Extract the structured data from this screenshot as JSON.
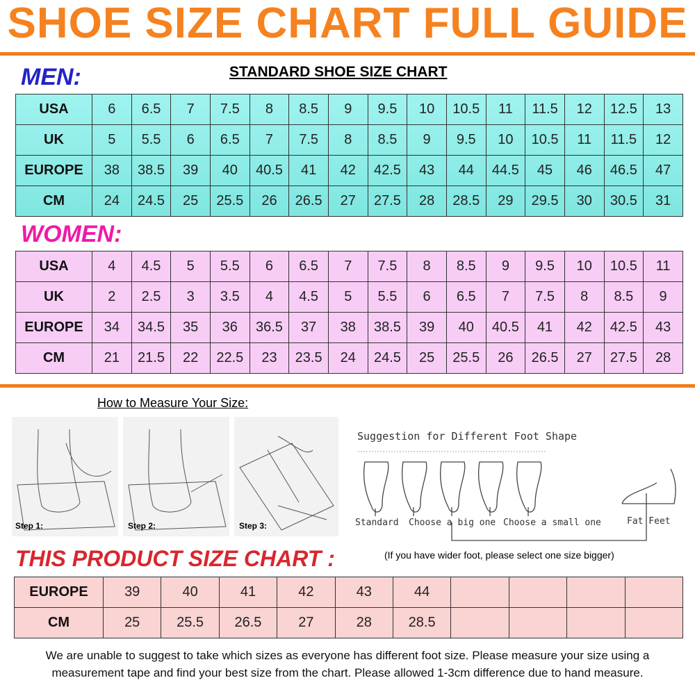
{
  "header": {
    "title": "SHOE SIZE CHART FULL GUIDE"
  },
  "men": {
    "heading": "MEN:",
    "subtitle": "STANDARD SHOE SIZE CHART",
    "rows": [
      {
        "label": "USA",
        "values": [
          6,
          6.5,
          7,
          7.5,
          8,
          8.5,
          9,
          9.5,
          10,
          10.5,
          11,
          11.5,
          12,
          12.5,
          13
        ]
      },
      {
        "label": "UK",
        "values": [
          5,
          5.5,
          6,
          6.5,
          7,
          7.5,
          8,
          8.5,
          9,
          9.5,
          10,
          10.5,
          11,
          11.5,
          12
        ]
      },
      {
        "label": "EUROPE",
        "values": [
          38,
          38.5,
          39,
          40,
          40.5,
          41,
          42,
          42.5,
          43,
          44,
          44.5,
          45,
          46,
          46.5,
          47
        ]
      },
      {
        "label": "CM",
        "values": [
          24,
          24.5,
          25,
          25.5,
          26,
          26.5,
          27,
          27.5,
          28,
          28.5,
          29,
          29.5,
          30,
          30.5,
          31
        ]
      }
    ]
  },
  "women": {
    "heading": "WOMEN:",
    "rows": [
      {
        "label": "USA",
        "values": [
          4,
          4.5,
          5,
          5.5,
          6,
          6.5,
          7,
          7.5,
          8,
          8.5,
          9,
          9.5,
          10,
          10.5,
          11
        ]
      },
      {
        "label": "UK",
        "values": [
          2,
          2.5,
          3,
          3.5,
          4,
          4.5,
          5,
          5.5,
          6,
          6.5,
          7,
          7.5,
          8,
          8.5,
          9
        ]
      },
      {
        "label": "EUROPE",
        "values": [
          34,
          34.5,
          35,
          36,
          36.5,
          37,
          38,
          38.5,
          39,
          40,
          40.5,
          41,
          42,
          42.5,
          43
        ]
      },
      {
        "label": "CM",
        "values": [
          21,
          21.5,
          22,
          22.5,
          23,
          23.5,
          24,
          24.5,
          25,
          25.5,
          26,
          26.5,
          27,
          27.5,
          28
        ]
      }
    ]
  },
  "measure": {
    "heading": "How to Measure Your Size:",
    "steps": [
      "Step 1:",
      "Step 2:",
      "Step 3:"
    ]
  },
  "foot_shape": {
    "heading": "Suggestion for Different Foot Shape",
    "labels": [
      "Standard",
      "Choose a big one",
      "Choose a small one",
      "Fat Feet"
    ]
  },
  "product": {
    "heading": "THIS PRODUCT SIZE CHART :",
    "note": "(If you have wider foot, please select one size bigger)",
    "rows": [
      {
        "label": "EUROPE",
        "values": [
          39,
          40,
          41,
          42,
          43,
          44
        ]
      },
      {
        "label": "CM",
        "values": [
          25,
          25.5,
          26.5,
          27,
          28,
          28.5
        ]
      }
    ]
  },
  "footer": {
    "lines": [
      "We are unable to suggest to take which sizes as everyone has different foot size. Please measure your size using a",
      "measurement tape and find your best size from the chart. Please allowed 1-3cm difference due to hand measure."
    ]
  }
}
